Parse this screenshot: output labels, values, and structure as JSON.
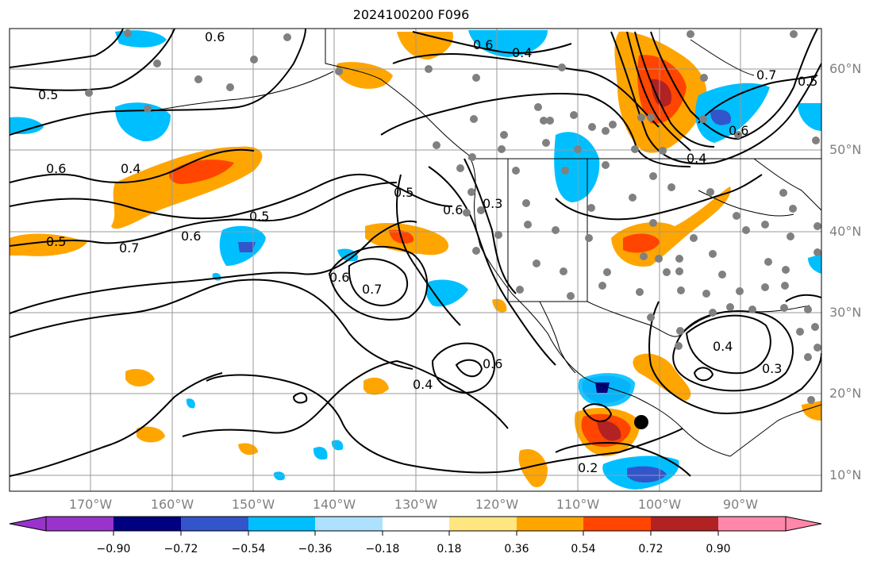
{
  "title": "2024100200 F096",
  "map": {
    "lat_labels": [
      "60°N",
      "50°N",
      "40°N",
      "30°N",
      "20°N",
      "10°N"
    ],
    "lon_labels": [
      "170°W",
      "160°W",
      "150°W",
      "140°W",
      "130°W",
      "120°W",
      "110°W",
      "100°W",
      "90°W"
    ],
    "contour_labels": [
      "0.6",
      "0.6",
      "0.5",
      "0.6",
      "0.4",
      "0.5",
      "0.7",
      "0.6",
      "0.5",
      "0.5",
      "0.6",
      "0.3",
      "0.6",
      "0.7",
      "0.6",
      "0.4",
      "0.2",
      "0.4",
      "0.3",
      "0.7",
      "0.5",
      "0.6",
      "0.4",
      "0.4"
    ],
    "land_color": "#ffffff",
    "grid_color": "#999999"
  },
  "colorbar": {
    "ticks": [
      "−0.90",
      "−0.72",
      "−0.54",
      "−0.36",
      "−0.18",
      "0.18",
      "0.36",
      "0.54",
      "0.72",
      "0.90"
    ],
    "colors": [
      "#9933cc",
      "#000080",
      "#3355cc",
      "#00bfff",
      "#aee0ff",
      "#ffffff",
      "#ffe680",
      "#ffa500",
      "#ff4500",
      "#b22222",
      "#ff88aa"
    ]
  }
}
